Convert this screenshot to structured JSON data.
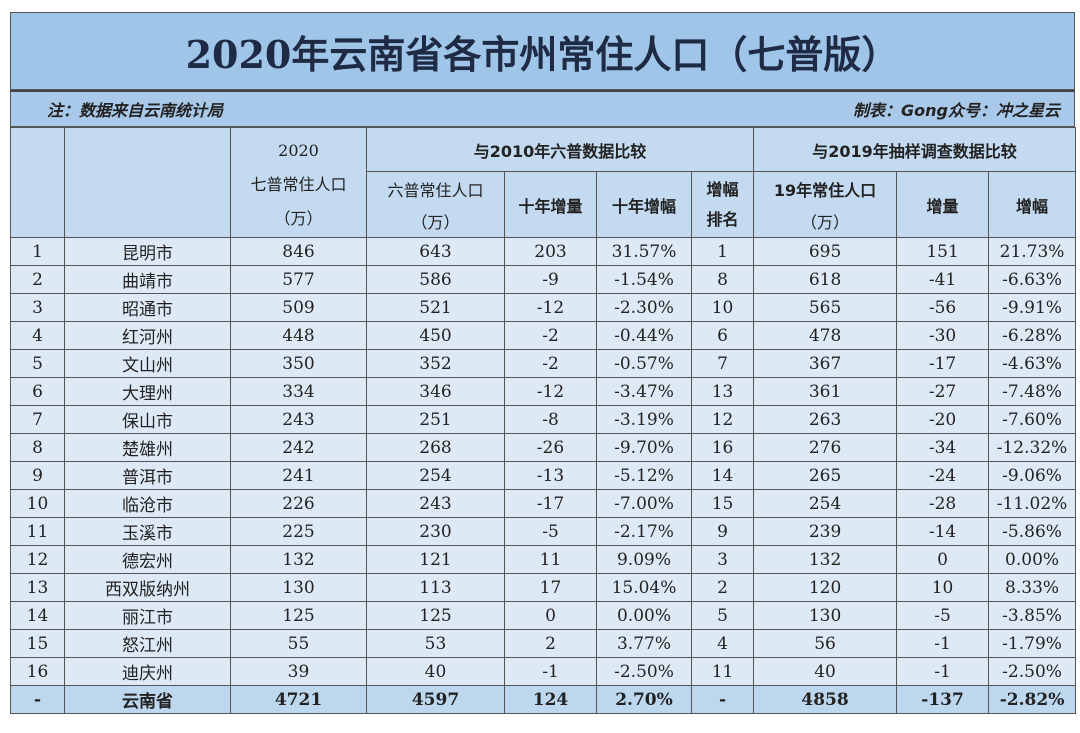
{
  "title": "2020年云南省各市州常住人口（七普版）",
  "note_left": "注：数据来自云南统计局",
  "note_right": "制表：Gong众号：冲之星云",
  "header": {
    "col2020_year": "2020",
    "col2020_label": "七普常住人口",
    "col2020_unit": "（万）",
    "group2010": "与2010年六普数据比较",
    "group2019": "与2019年抽样调查数据比较",
    "c6_label": "六普常住人口",
    "c6_unit": "（万）",
    "c_dec_inc": "十年增量",
    "c_dec_pct": "十年增幅",
    "c_rank": "增幅排名",
    "c19_label": "19年常住人口",
    "c19_unit": "（万）",
    "c_inc": "增量",
    "c_pct": "增幅"
  },
  "rows": [
    [
      "1",
      "昆明市",
      "846",
      "643",
      "203",
      "31.57%",
      "1",
      "695",
      "151",
      "21.73%"
    ],
    [
      "2",
      "曲靖市",
      "577",
      "586",
      "-9",
      "-1.54%",
      "8",
      "618",
      "-41",
      "-6.63%"
    ],
    [
      "3",
      "昭通市",
      "509",
      "521",
      "-12",
      "-2.30%",
      "10",
      "565",
      "-56",
      "-9.91%"
    ],
    [
      "4",
      "红河州",
      "448",
      "450",
      "-2",
      "-0.44%",
      "6",
      "478",
      "-30",
      "-6.28%"
    ],
    [
      "5",
      "文山州",
      "350",
      "352",
      "-2",
      "-0.57%",
      "7",
      "367",
      "-17",
      "-4.63%"
    ],
    [
      "6",
      "大理州",
      "334",
      "346",
      "-12",
      "-3.47%",
      "13",
      "361",
      "-27",
      "-7.48%"
    ],
    [
      "7",
      "保山市",
      "243",
      "251",
      "-8",
      "-3.19%",
      "12",
      "263",
      "-20",
      "-7.60%"
    ],
    [
      "8",
      "楚雄州",
      "242",
      "268",
      "-26",
      "-9.70%",
      "16",
      "276",
      "-34",
      "-12.32%"
    ],
    [
      "9",
      "普洱市",
      "241",
      "254",
      "-13",
      "-5.12%",
      "14",
      "265",
      "-24",
      "-9.06%"
    ],
    [
      "10",
      "临沧市",
      "226",
      "243",
      "-17",
      "-7.00%",
      "15",
      "254",
      "-28",
      "-11.02%"
    ],
    [
      "11",
      "玉溪市",
      "225",
      "230",
      "-5",
      "-2.17%",
      "9",
      "239",
      "-14",
      "-5.86%"
    ],
    [
      "12",
      "德宏州",
      "132",
      "121",
      "11",
      "9.09%",
      "3",
      "132",
      "0",
      "0.00%"
    ],
    [
      "13",
      "西双版纳州",
      "130",
      "113",
      "17",
      "15.04%",
      "2",
      "120",
      "10",
      "8.33%"
    ],
    [
      "14",
      "丽江市",
      "125",
      "125",
      "0",
      "0.00%",
      "5",
      "130",
      "-5",
      "-3.85%"
    ],
    [
      "15",
      "怒江州",
      "55",
      "53",
      "2",
      "3.77%",
      "4",
      "56",
      "-1",
      "-1.79%"
    ],
    [
      "16",
      "迪庆州",
      "39",
      "40",
      "-1",
      "-2.50%",
      "11",
      "40",
      "-1",
      "-2.50%"
    ]
  ],
  "total": [
    "-",
    "云南省",
    "4721",
    "4597",
    "124",
    "2.70%",
    "-",
    "4858",
    "-137",
    "-2.82%"
  ]
}
